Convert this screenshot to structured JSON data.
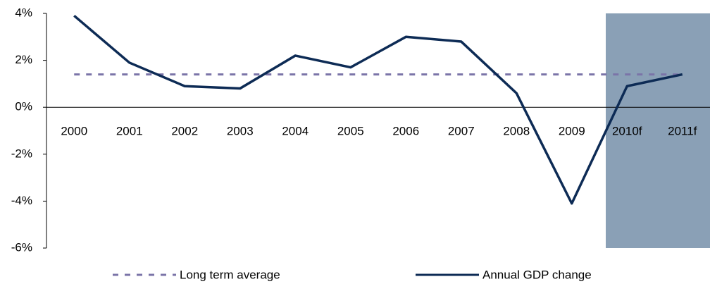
{
  "chart_data": {
    "type": "line",
    "categories": [
      "2000",
      "2001",
      "2002",
      "2003",
      "2004",
      "2005",
      "2006",
      "2007",
      "2008",
      "2009",
      "2010f",
      "2011f"
    ],
    "series": [
      {
        "name": "Long term average",
        "color": "#7b74a8",
        "dashed": true,
        "values": [
          1.4,
          1.4,
          1.4,
          1.4,
          1.4,
          1.4,
          1.4,
          1.4,
          1.4,
          1.4,
          1.4,
          1.4
        ]
      },
      {
        "name": "Annual GDP change",
        "color": "#0d2b55",
        "dashed": false,
        "values": [
          3.9,
          1.9,
          0.9,
          0.8,
          2.2,
          1.7,
          3.0,
          2.8,
          0.6,
          -4.1,
          0.9,
          1.4
        ]
      }
    ],
    "ylim": [
      -6,
      4
    ],
    "yticks": [
      {
        "value": -6,
        "label": "-6%"
      },
      {
        "value": -4,
        "label": "-4%"
      },
      {
        "value": -2,
        "label": "-2%"
      },
      {
        "value": 0,
        "label": "0%"
      },
      {
        "value": 2,
        "label": "2%"
      },
      {
        "value": 4,
        "label": "4%"
      }
    ],
    "legend": "bottom"
  }
}
